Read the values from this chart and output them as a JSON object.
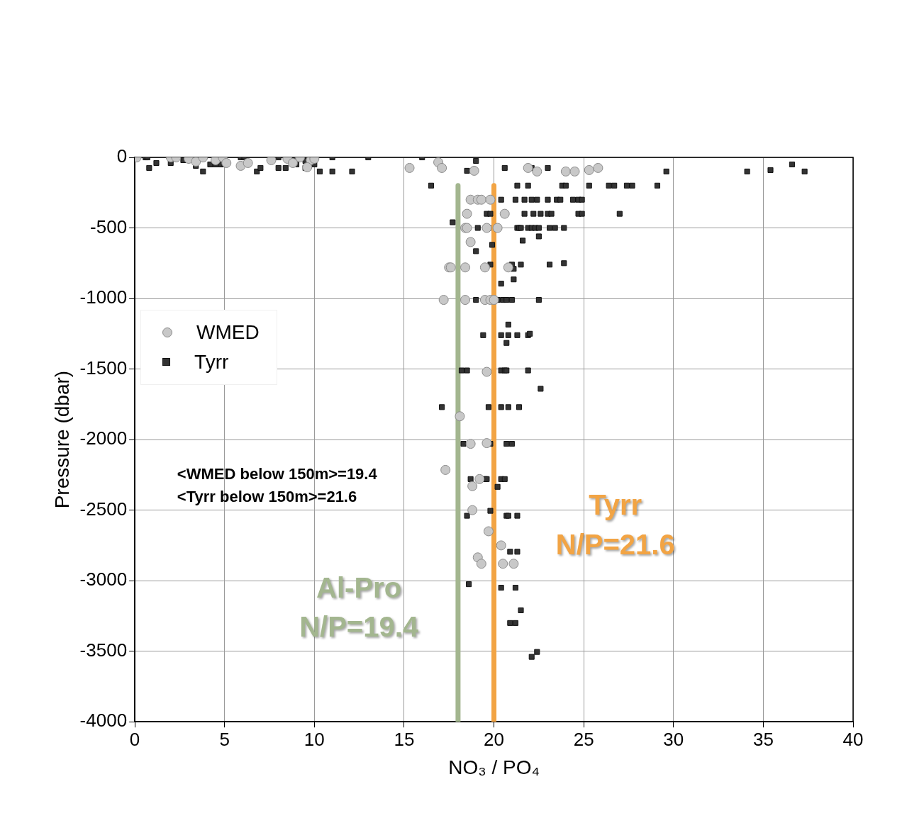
{
  "chart_data": {
    "type": "scatter",
    "xlabel": "NO₃ / PO₄",
    "ylabel": "Pressure (dbar)",
    "xlim": [
      0,
      40
    ],
    "xticks": [
      0,
      5,
      10,
      15,
      20,
      25,
      30,
      35,
      40
    ],
    "ylim": [
      -4000,
      0
    ],
    "yticks": [
      -4000,
      -3500,
      -3000,
      -2500,
      -2000,
      -1500,
      -1000,
      -500,
      0
    ],
    "grid": true,
    "legend": "left",
    "series": [
      {
        "name": "WMED",
        "color": "#c8c8c8",
        "marker": "circle",
        "x": [
          0.1,
          2.0,
          2.3,
          3.0,
          3.4,
          3.8,
          4.5,
          4.9,
          5.1,
          5.9,
          6.3,
          7.6,
          8.5,
          8.8,
          9.2,
          9.8,
          10.0,
          9.6,
          15.3,
          16.9,
          17.1,
          18.9,
          21.9,
          22.4,
          24.0,
          24.5,
          25.3,
          25.8,
          18.7,
          19.1,
          19.3,
          19.8,
          18.5,
          20.6,
          18.4,
          18.5,
          19.6,
          20.2,
          18.7,
          17.5,
          17.6,
          18.4,
          19.5,
          20.8,
          17.2,
          18.4,
          19.5,
          19.8,
          20.0,
          19.6,
          18.1,
          18.7,
          19.6,
          17.3,
          19.2,
          18.8,
          18.8,
          19.7,
          20.4,
          19.1,
          19.3,
          20.5,
          21.1
        ],
        "values": [
          0,
          0,
          0,
          -10,
          -30,
          0,
          -20,
          0,
          -40,
          -60,
          -40,
          -20,
          -10,
          -40,
          0,
          -20,
          -10,
          -70,
          -75,
          -35,
          -75,
          -95,
          -75,
          -100,
          -100,
          -100,
          -90,
          -75,
          -300,
          -300,
          -300,
          -300,
          -400,
          -400,
          -500,
          -500,
          -500,
          -500,
          -600,
          -780,
          -780,
          -780,
          -780,
          -780,
          -1010,
          -1010,
          -1010,
          -1010,
          -1010,
          -1520,
          -1835,
          -2030,
          -2025,
          -2215,
          -2280,
          -2330,
          -2500,
          -2650,
          -2750,
          -2835,
          -2880,
          -2880,
          -2880
        ]
      },
      {
        "name": "Tyrr",
        "color": "#333333",
        "marker": "square",
        "x": [
          0.6,
          0.7,
          0.8,
          1.2,
          2.0,
          2.7,
          3.4,
          3.8,
          4.2,
          4.5,
          4.8,
          5.0,
          5.9,
          6.1,
          6.8,
          7.0,
          8.0,
          8.0,
          8.4,
          9.0,
          9.0,
          9.5,
          9.5,
          10.0,
          10.3,
          11.0,
          11.0,
          12.1,
          13.0,
          16.0,
          18.5,
          19.0,
          20.6,
          22.1,
          23.0,
          29.6,
          34.1,
          35.4,
          36.6,
          37.3,
          16.5,
          21.3,
          21.9,
          23.8,
          24.0,
          25.3,
          26.4,
          26.7,
          27.4,
          27.7,
          29.1,
          20.4,
          21.2,
          21.7,
          22.1,
          22.4,
          23.0,
          23.5,
          23.7,
          24.4,
          24.7,
          24.9,
          19.6,
          19.8,
          21.7,
          22.2,
          22.6,
          23.0,
          23.2,
          24.7,
          24.9,
          27.0,
          17.7,
          19.1,
          19.7,
          21.3,
          21.4,
          21.5,
          21.9,
          22.1,
          22.3,
          22.5,
          23.1,
          23.4,
          23.9,
          22.5,
          21.6,
          19.9,
          19.0,
          19.8,
          21.0,
          21.1,
          21.5,
          23.1,
          23.9,
          21.1,
          20.4,
          19.0,
          20.2,
          20.5,
          20.7,
          21.0,
          22.5,
          20.8,
          19.4,
          20.4,
          20.8,
          21.3,
          21.9,
          22.0,
          20.7,
          18.2,
          18.5,
          20.4,
          20.6,
          20.7,
          21.9,
          22.6,
          17.1,
          19.7,
          20.4,
          20.8,
          21.4,
          18.3,
          19.8,
          20.7,
          21.0,
          18.7,
          19.5,
          19.6,
          20.4,
          20.6,
          20.2,
          19.8,
          18.5,
          20.7,
          20.8,
          21.3,
          20.9,
          21.3,
          18.6,
          20.4,
          21.2,
          21.5,
          20.9,
          21.2,
          22.4,
          22.1
        ],
        "values": [
          0,
          0,
          -75,
          -40,
          -40,
          -20,
          -60,
          -100,
          -50,
          -50,
          -50,
          -50,
          0,
          0,
          -100,
          -75,
          0,
          -75,
          -75,
          0,
          -50,
          -25,
          -75,
          -50,
          -100,
          0,
          -100,
          -100,
          0,
          0,
          -95,
          -25,
          -75,
          -75,
          -75,
          -100,
          -100,
          -90,
          -50,
          -100,
          -200,
          -200,
          -200,
          -200,
          -200,
          -200,
          -200,
          -200,
          -200,
          -200,
          -200,
          -300,
          -300,
          -300,
          -300,
          -300,
          -300,
          -300,
          -300,
          -300,
          -300,
          -300,
          -400,
          -400,
          -400,
          -400,
          -400,
          -400,
          -400,
          -400,
          -400,
          -400,
          -460,
          -500,
          -500,
          -500,
          -500,
          -500,
          -500,
          -500,
          -500,
          -500,
          -500,
          -500,
          -500,
          -560,
          -590,
          -620,
          -665,
          -760,
          -760,
          -790,
          -760,
          -760,
          -750,
          -865,
          -895,
          -1010,
          -1010,
          -1010,
          -1010,
          -1010,
          -1010,
          -1185,
          -1260,
          -1260,
          -1260,
          -1260,
          -1260,
          -1250,
          -1315,
          -1510,
          -1510,
          -1510,
          -1510,
          -1510,
          -1510,
          -1640,
          -1770,
          -1770,
          -1770,
          -1770,
          -1770,
          -2030,
          -2030,
          -2030,
          -2030,
          -2280,
          -2280,
          -2280,
          -2280,
          -2280,
          -2335,
          -2505,
          -2540,
          -2540,
          -2540,
          -2540,
          -2795,
          -2795,
          -3025,
          -3050,
          -3050,
          -3210,
          -3300,
          -3300,
          -3505,
          -3540
        ]
      },
      {
        "type": "line",
        "color": "#a3b68f",
        "x": [
          18,
          18
        ],
        "values": [
          -200,
          -4000
        ]
      },
      {
        "type": "line",
        "color": "#f2a444",
        "x": [
          20,
          20
        ],
        "values": [
          -200,
          -4000
        ]
      }
    ],
    "annotations": [
      "<WMED below 150m>=19.4",
      "<Tyrr below 150m>=21.6",
      "Al-Pro",
      "N/P=19.4",
      "Tyrr",
      "N/P=21.6"
    ]
  }
}
